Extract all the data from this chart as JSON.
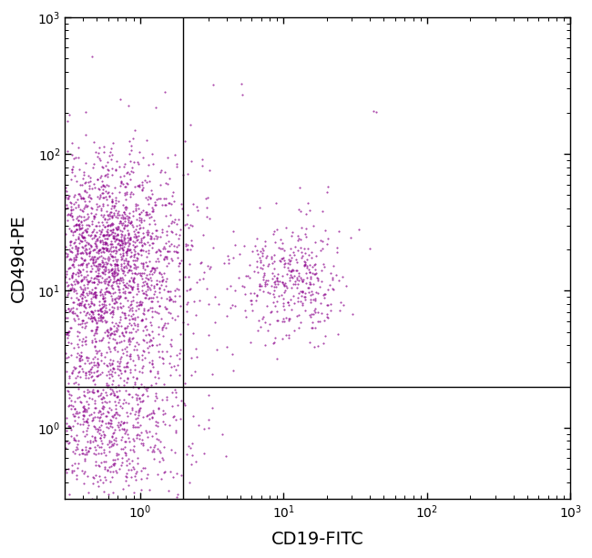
{
  "dot_color": "#8B008B",
  "dot_alpha": 0.7,
  "dot_size": 2.5,
  "xlabel": "CD19-FITC",
  "ylabel": "CD49d-PE",
  "xlim": [
    0.3,
    1000.0
  ],
  "ylim": [
    0.3,
    1000.0
  ],
  "quadrant_x": 2.0,
  "quadrant_y": 2.0,
  "clusters": [
    {
      "name": "Q2_main",
      "center_x_log": -0.25,
      "center_y_log": 1.22,
      "spread_x": 0.28,
      "spread_y": 0.38,
      "n_points": 2200
    },
    {
      "name": "Q1_upper_right",
      "center_x_log": 1.05,
      "center_y_log": 1.08,
      "spread_x": 0.2,
      "spread_y": 0.22,
      "n_points": 400
    },
    {
      "name": "Q3_lower_left",
      "center_x_log": -0.22,
      "center_y_log": 0.1,
      "spread_x": 0.28,
      "spread_y": 0.32,
      "n_points": 900
    }
  ],
  "scatter_extra": [
    {
      "x_log": 0.65,
      "y_log": 2.45,
      "n": 3
    },
    {
      "x_log": 1.52,
      "y_log": 2.2,
      "n": 2
    }
  ],
  "background_color": "#ffffff",
  "figsize": [
    6.5,
    6.13
  ],
  "dpi": 100
}
